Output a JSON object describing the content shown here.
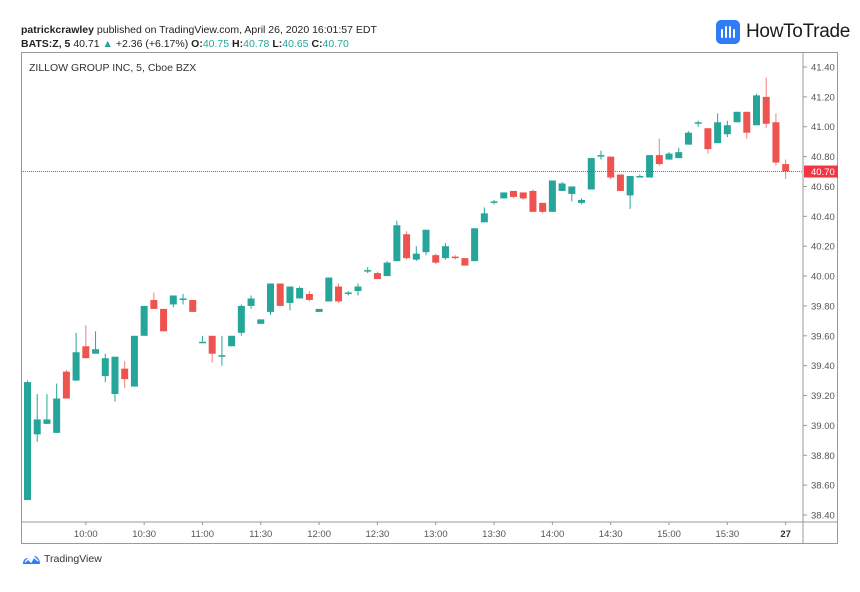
{
  "header": {
    "author": "patrickcrawley",
    "published_text": " published on TradingView.com, April 26, 2020 16:01:57 EDT",
    "symbol": "BATS:Z, 5",
    "last": "40.71",
    "change_arrow": "▲",
    "change": "+2.36 (+6.17%)",
    "o_label": "O:",
    "o": "40.75",
    "h_label": "H:",
    "h": "40.78",
    "l_label": "L:",
    "l": "40.65",
    "c_label": "C:",
    "c": "40.70"
  },
  "brand": {
    "name": "HowToTrade"
  },
  "chart_title": "ZILLOW GROUP INC, 5, Cboe BZX",
  "footer": {
    "tradingview_label": "TradingView"
  },
  "colors": {
    "up": "#26a69a",
    "down": "#ef5350",
    "price_line": "#f23645",
    "axis_text": "#555555",
    "frame": "#9a9a9a"
  },
  "chart_data": {
    "type": "candlestick",
    "title": "ZILLOW GROUP INC, 5, Cboe BZX",
    "interval": "5",
    "xlabel": "",
    "ylabel": "",
    "ylim": [
      38.3,
      41.5
    ],
    "y_ticks": [
      "41.40",
      "41.20",
      "41.00",
      "40.80",
      "40.60",
      "40.40",
      "40.20",
      "40.00",
      "39.80",
      "39.60",
      "39.40",
      "39.20",
      "39.00",
      "38.80",
      "38.60",
      "38.40"
    ],
    "x_ticks": [
      {
        "label": "10:00",
        "bar": 6
      },
      {
        "label": "10:30",
        "bar": 12
      },
      {
        "label": "11:00",
        "bar": 18
      },
      {
        "label": "11:30",
        "bar": 24
      },
      {
        "label": "12:00",
        "bar": 30
      },
      {
        "label": "12:30",
        "bar": 36
      },
      {
        "label": "13:00",
        "bar": 42
      },
      {
        "label": "13:30",
        "bar": 48
      },
      {
        "label": "14:00",
        "bar": 54
      },
      {
        "label": "14:30",
        "bar": 60
      },
      {
        "label": "15:00",
        "bar": 66
      },
      {
        "label": "15:30",
        "bar": 72
      },
      {
        "label": "27",
        "bar": 78
      }
    ],
    "current_price": "40.70",
    "grid": false,
    "candles": [
      {
        "t": "09:30",
        "o": 38.5,
        "h": 39.3,
        "l": 38.5,
        "c": 39.29
      },
      {
        "t": "09:35",
        "o": 38.94,
        "h": 39.21,
        "l": 38.89,
        "c": 39.04
      },
      {
        "t": "09:40",
        "o": 39.01,
        "h": 39.21,
        "l": 39.01,
        "c": 39.04
      },
      {
        "t": "09:45",
        "o": 38.95,
        "h": 39.28,
        "l": 38.95,
        "c": 39.18
      },
      {
        "t": "09:50",
        "o": 39.36,
        "h": 39.37,
        "l": 39.18,
        "c": 39.18
      },
      {
        "t": "09:55",
        "o": 39.3,
        "h": 39.62,
        "l": 39.3,
        "c": 39.49
      },
      {
        "t": "10:00",
        "o": 39.53,
        "h": 39.67,
        "l": 39.45,
        "c": 39.45
      },
      {
        "t": "10:05",
        "o": 39.48,
        "h": 39.63,
        "l": 39.48,
        "c": 39.51
      },
      {
        "t": "10:10",
        "o": 39.33,
        "h": 39.48,
        "l": 39.29,
        "c": 39.45
      },
      {
        "t": "10:15",
        "o": 39.21,
        "h": 39.45,
        "l": 39.16,
        "c": 39.46
      },
      {
        "t": "10:20",
        "o": 39.38,
        "h": 39.43,
        "l": 39.25,
        "c": 39.31
      },
      {
        "t": "10:25",
        "o": 39.26,
        "h": 39.6,
        "l": 39.26,
        "c": 39.6
      },
      {
        "t": "10:30",
        "o": 39.6,
        "h": 39.8,
        "l": 39.6,
        "c": 39.8
      },
      {
        "t": "10:35",
        "o": 39.84,
        "h": 39.89,
        "l": 39.78,
        "c": 39.78
      },
      {
        "t": "10:40",
        "o": 39.78,
        "h": 39.78,
        "l": 39.63,
        "c": 39.63
      },
      {
        "t": "10:45",
        "o": 39.81,
        "h": 39.87,
        "l": 39.79,
        "c": 39.87
      },
      {
        "t": "10:50",
        "o": 39.85,
        "h": 39.88,
        "l": 39.81,
        "c": 39.85
      },
      {
        "t": "10:55",
        "o": 39.84,
        "h": 39.84,
        "l": 39.76,
        "c": 39.76
      },
      {
        "t": "11:00",
        "o": 39.56,
        "h": 39.6,
        "l": 39.56,
        "c": 39.56
      },
      {
        "t": "11:05",
        "o": 39.6,
        "h": 39.59,
        "l": 39.42,
        "c": 39.48
      },
      {
        "t": "11:10",
        "o": 39.47,
        "h": 39.6,
        "l": 39.4,
        "c": 39.47
      },
      {
        "t": "11:15",
        "o": 39.53,
        "h": 39.6,
        "l": 39.53,
        "c": 39.6
      },
      {
        "t": "11:20",
        "o": 39.62,
        "h": 39.81,
        "l": 39.6,
        "c": 39.8
      },
      {
        "t": "11:25",
        "o": 39.8,
        "h": 39.87,
        "l": 39.78,
        "c": 39.85
      },
      {
        "t": "11:30",
        "o": 39.68,
        "h": 39.71,
        "l": 39.68,
        "c": 39.71
      },
      {
        "t": "11:35",
        "o": 39.76,
        "h": 39.95,
        "l": 39.74,
        "c": 39.95
      },
      {
        "t": "11:40",
        "o": 39.95,
        "h": 39.95,
        "l": 39.8,
        "c": 39.8
      },
      {
        "t": "11:45",
        "o": 39.82,
        "h": 39.93,
        "l": 39.77,
        "c": 39.93
      },
      {
        "t": "11:50",
        "o": 39.85,
        "h": 39.93,
        "l": 39.85,
        "c": 39.92
      },
      {
        "t": "11:55",
        "o": 39.88,
        "h": 39.9,
        "l": 39.83,
        "c": 39.84
      },
      {
        "t": "12:00",
        "o": 39.76,
        "h": 39.78,
        "l": 39.76,
        "c": 39.78
      },
      {
        "t": "12:05",
        "o": 39.83,
        "h": 39.99,
        "l": 39.83,
        "c": 39.99
      },
      {
        "t": "12:10",
        "o": 39.93,
        "h": 39.95,
        "l": 39.82,
        "c": 39.83
      },
      {
        "t": "12:15",
        "o": 39.89,
        "h": 39.9,
        "l": 39.87,
        "c": 39.89
      },
      {
        "t": "12:20",
        "o": 39.9,
        "h": 39.95,
        "l": 39.87,
        "c": 39.93
      },
      {
        "t": "12:25",
        "o": 40.04,
        "h": 40.06,
        "l": 40.02,
        "c": 40.04
      },
      {
        "t": "12:30",
        "o": 40.02,
        "h": 40.03,
        "l": 39.98,
        "c": 39.98
      },
      {
        "t": "12:35",
        "o": 40.0,
        "h": 40.1,
        "l": 40.0,
        "c": 40.09
      },
      {
        "t": "12:40",
        "o": 40.1,
        "h": 40.37,
        "l": 40.1,
        "c": 40.34
      },
      {
        "t": "12:45",
        "o": 40.28,
        "h": 40.3,
        "l": 40.11,
        "c": 40.12
      },
      {
        "t": "12:50",
        "o": 40.11,
        "h": 40.2,
        "l": 40.1,
        "c": 40.15
      },
      {
        "t": "12:55",
        "o": 40.16,
        "h": 40.31,
        "l": 40.14,
        "c": 40.31
      },
      {
        "t": "13:00",
        "o": 40.14,
        "h": 40.15,
        "l": 40.08,
        "c": 40.09
      },
      {
        "t": "13:05",
        "o": 40.12,
        "h": 40.22,
        "l": 40.11,
        "c": 40.2
      },
      {
        "t": "13:10",
        "o": 40.13,
        "h": 40.14,
        "l": 40.11,
        "c": 40.12
      },
      {
        "t": "13:15",
        "o": 40.12,
        "h": 40.12,
        "l": 40.07,
        "c": 40.07
      },
      {
        "t": "13:20",
        "o": 40.1,
        "h": 40.32,
        "l": 40.1,
        "c": 40.32
      },
      {
        "t": "13:25",
        "o": 40.36,
        "h": 40.46,
        "l": 40.36,
        "c": 40.42
      },
      {
        "t": "13:30",
        "o": 40.5,
        "h": 40.51,
        "l": 40.48,
        "c": 40.5
      },
      {
        "t": "13:35",
        "o": 40.52,
        "h": 40.56,
        "l": 40.52,
        "c": 40.56
      },
      {
        "t": "13:40",
        "o": 40.57,
        "h": 40.57,
        "l": 40.52,
        "c": 40.53
      },
      {
        "t": "13:45",
        "o": 40.56,
        "h": 40.56,
        "l": 40.51,
        "c": 40.52
      },
      {
        "t": "13:50",
        "o": 40.57,
        "h": 40.58,
        "l": 40.43,
        "c": 40.43
      },
      {
        "t": "13:55",
        "o": 40.49,
        "h": 40.49,
        "l": 40.42,
        "c": 40.43
      },
      {
        "t": "14:00",
        "o": 40.43,
        "h": 40.64,
        "l": 40.43,
        "c": 40.64
      },
      {
        "t": "14:05",
        "o": 40.57,
        "h": 40.63,
        "l": 40.57,
        "c": 40.62
      },
      {
        "t": "14:10",
        "o": 40.55,
        "h": 40.6,
        "l": 40.5,
        "c": 40.6
      },
      {
        "t": "14:15",
        "o": 40.49,
        "h": 40.52,
        "l": 40.48,
        "c": 40.51
      },
      {
        "t": "14:20",
        "o": 40.58,
        "h": 40.79,
        "l": 40.58,
        "c": 40.79
      },
      {
        "t": "14:25",
        "o": 40.8,
        "h": 40.84,
        "l": 40.78,
        "c": 40.81
      },
      {
        "t": "14:30",
        "o": 40.8,
        "h": 40.8,
        "l": 40.65,
        "c": 40.66
      },
      {
        "t": "14:35",
        "o": 40.68,
        "h": 40.68,
        "l": 40.57,
        "c": 40.57
      },
      {
        "t": "14:40",
        "o": 40.54,
        "h": 40.67,
        "l": 40.45,
        "c": 40.67
      },
      {
        "t": "14:45",
        "o": 40.67,
        "h": 40.68,
        "l": 40.66,
        "c": 40.67
      },
      {
        "t": "14:50",
        "o": 40.66,
        "h": 40.81,
        "l": 40.66,
        "c": 40.81
      },
      {
        "t": "14:55",
        "o": 40.81,
        "h": 40.92,
        "l": 40.74,
        "c": 40.75
      },
      {
        "t": "15:00",
        "o": 40.78,
        "h": 40.83,
        "l": 40.78,
        "c": 40.82
      },
      {
        "t": "15:05",
        "o": 40.79,
        "h": 40.86,
        "l": 40.79,
        "c": 40.83
      },
      {
        "t": "15:10",
        "o": 40.88,
        "h": 40.97,
        "l": 40.88,
        "c": 40.96
      },
      {
        "t": "15:15",
        "o": 41.02,
        "h": 41.04,
        "l": 41.0,
        "c": 41.03
      },
      {
        "t": "15:20",
        "o": 40.99,
        "h": 40.99,
        "l": 40.82,
        "c": 40.85
      },
      {
        "t": "15:25",
        "o": 40.89,
        "h": 41.09,
        "l": 40.89,
        "c": 41.03
      },
      {
        "t": "15:30",
        "o": 40.95,
        "h": 41.04,
        "l": 40.93,
        "c": 41.01
      },
      {
        "t": "15:35",
        "o": 41.03,
        "h": 41.1,
        "l": 41.03,
        "c": 41.1
      },
      {
        "t": "15:40",
        "o": 41.1,
        "h": 41.1,
        "l": 40.92,
        "c": 40.96
      },
      {
        "t": "15:45",
        "o": 41.01,
        "h": 41.22,
        "l": 41.01,
        "c": 41.21
      },
      {
        "t": "15:50",
        "o": 41.2,
        "h": 41.33,
        "l": 40.99,
        "c": 41.02
      },
      {
        "t": "15:55",
        "o": 41.03,
        "h": 41.09,
        "l": 40.74,
        "c": 40.76
      },
      {
        "t": "16:00",
        "o": 40.75,
        "h": 40.78,
        "l": 40.65,
        "c": 40.7
      }
    ]
  }
}
